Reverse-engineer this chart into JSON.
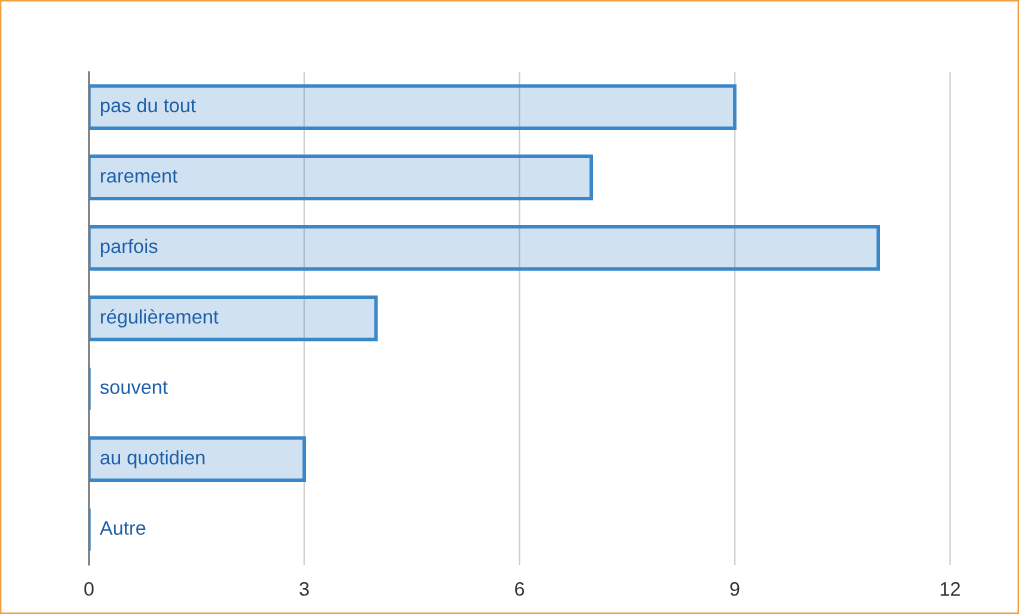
{
  "chart_data": {
    "type": "bar",
    "orientation": "horizontal",
    "categories": [
      "pas du tout",
      "rarement",
      "parfois",
      "régulièrement",
      "souvent",
      "au quotidien",
      "Autre"
    ],
    "values": [
      9,
      7,
      11,
      4,
      0,
      3,
      0
    ],
    "color": "#3a87c8",
    "xlim": [
      0,
      12.9
    ],
    "xticks": [
      0,
      3,
      6,
      9,
      12
    ],
    "grid": "x",
    "legend": false
  }
}
